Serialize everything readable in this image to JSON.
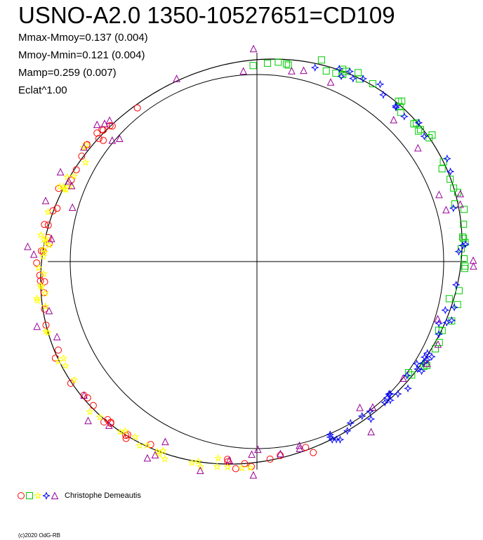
{
  "chart_data": {
    "type": "scatter",
    "title": "USNO-A2.0 1350-10527651=CD109",
    "stats": [
      "Mmax-Mmoy=0.137 (0.004)",
      "Mmoy-Mmin=0.121 (0.004)",
      "Mamp=0.259 (0.007)",
      "Eclat^1.00"
    ],
    "reference_circle": {
      "cx": 0,
      "cy": 0,
      "r": 1.0
    },
    "mean_curve_center": [
      -0.03,
      0.0
    ],
    "mean_curve_radius": 1.1,
    "mean_curve_amplitude": 0.06,
    "point_count": 260,
    "symbols": [
      {
        "shape": "circle",
        "color": "#ff0000",
        "phase_range": [
          0.45,
          0.9
        ]
      },
      {
        "shape": "star",
        "color": "#ffff00",
        "phase_range": [
          0.5,
          0.85
        ]
      },
      {
        "shape": "square",
        "color": "#00cc00",
        "phase_range": [
          0.0,
          0.35
        ]
      },
      {
        "shape": "star4",
        "color": "#0000ff",
        "phase_range": [
          0.05,
          0.45
        ]
      },
      {
        "shape": "triangle",
        "color": "#990099",
        "phase_range": [
          0.0,
          1.0
        ]
      }
    ],
    "legend": {
      "author": "Christophe Demeautis",
      "symbol_colors": [
        "#ff0000",
        "#00cc00",
        "#ffff00",
        "#0000ff",
        "#990099"
      ]
    }
  },
  "copyright": "(c)2020 OdG-RB"
}
